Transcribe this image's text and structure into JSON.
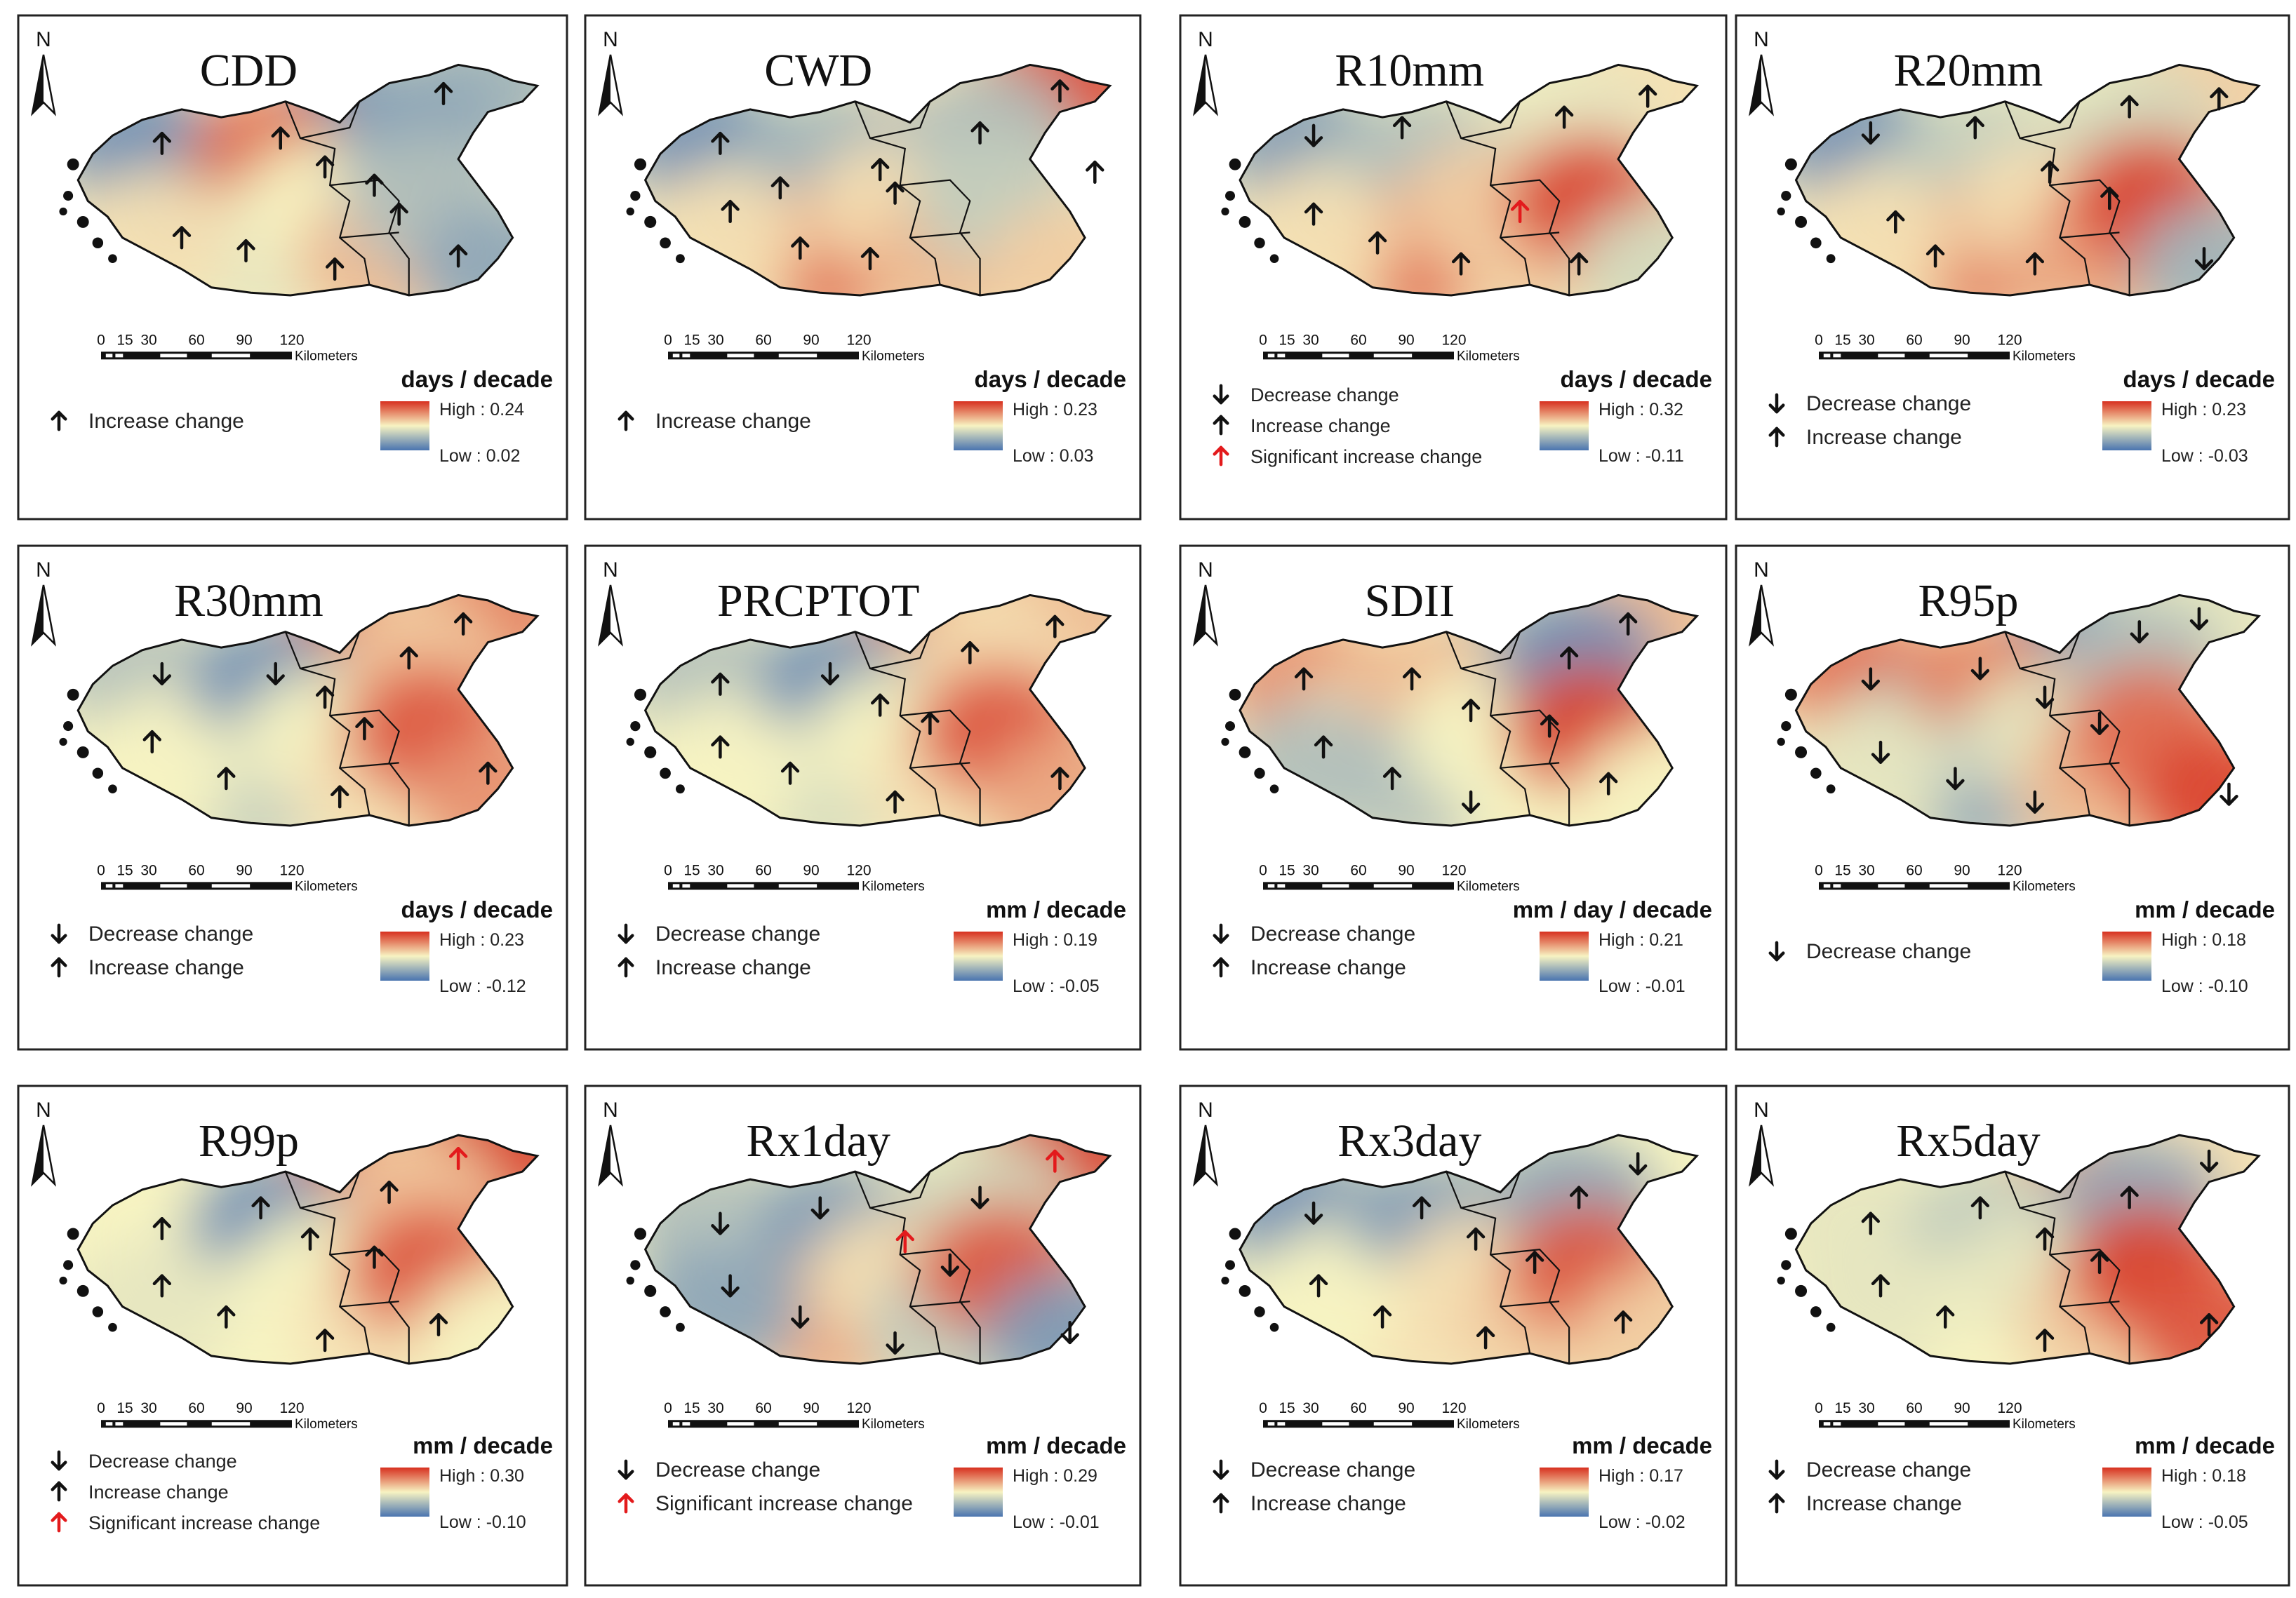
{
  "scale_bar": {
    "ticks": [
      "0",
      "15",
      "30",
      "60",
      "90",
      "120"
    ],
    "unit": "Kilometers"
  },
  "north_label": "N",
  "legend_labels": {
    "decrease": "Decrease change",
    "increase": "Increase change",
    "significant": "Significant increase change"
  },
  "colors": {
    "high": "#d7301f",
    "mid": "#f7f3c2",
    "low": "#4a74b0",
    "arrow": "#111111",
    "significant_arrow": "#e31a1c"
  },
  "panels": [
    {
      "title": "CDD",
      "unit": "days / decade",
      "high": "High : 0.24",
      "low": "Low : 0.02",
      "legend": [
        "increase"
      ],
      "field": [
        0.1,
        0.15,
        0.1,
        0.25,
        0.85,
        0.45,
        0.5,
        0.2,
        0.55,
        0.65,
        0.3,
        0.2
      ],
      "arrows": [
        [
          0.22,
          0.36,
          "up"
        ],
        [
          0.46,
          0.34,
          "up"
        ],
        [
          0.55,
          0.45,
          "up"
        ],
        [
          0.65,
          0.52,
          "up"
        ],
        [
          0.26,
          0.72,
          "up"
        ],
        [
          0.39,
          0.77,
          "up"
        ],
        [
          0.57,
          0.84,
          "up"
        ],
        [
          0.7,
          0.63,
          "up"
        ],
        [
          0.79,
          0.17,
          "up"
        ],
        [
          0.82,
          0.79,
          "up"
        ]
      ]
    },
    {
      "title": "CWD",
      "unit": "days / decade",
      "high": "High : 0.23",
      "low": "Low : 0.03",
      "legend": [
        "increase"
      ],
      "field": [
        0.1,
        0.3,
        0.55,
        0.95,
        0.25,
        0.85,
        0.55,
        0.3,
        0.55,
        0.65,
        0.35,
        0.6
      ],
      "arrows": [
        [
          0.2,
          0.36,
          "up"
        ],
        [
          0.32,
          0.53,
          "up"
        ],
        [
          0.52,
          0.46,
          "up"
        ],
        [
          0.55,
          0.55,
          "up"
        ],
        [
          0.22,
          0.62,
          "up"
        ],
        [
          0.36,
          0.76,
          "up"
        ],
        [
          0.5,
          0.8,
          "up"
        ],
        [
          0.72,
          0.32,
          "up"
        ],
        [
          0.88,
          0.16,
          "up"
        ],
        [
          0.95,
          0.47,
          "up"
        ]
      ]
    },
    {
      "title": "R10mm",
      "unit": "days / decade",
      "high": "High : 0.32",
      "low": "Low : -0.11",
      "legend": [
        "decrease",
        "increase",
        "significant"
      ],
      "field": [
        0.15,
        0.35,
        0.5,
        0.55,
        0.3,
        0.85,
        0.6,
        0.45,
        0.55,
        0.6,
        0.95,
        0.4
      ],
      "arrows": [
        [
          0.2,
          0.33,
          "down"
        ],
        [
          0.38,
          0.3,
          "up"
        ],
        [
          0.2,
          0.63,
          "up"
        ],
        [
          0.33,
          0.74,
          "up"
        ],
        [
          0.5,
          0.82,
          "up"
        ],
        [
          0.62,
          0.62,
          "sig"
        ],
        [
          0.71,
          0.26,
          "up"
        ],
        [
          0.88,
          0.18,
          "up"
        ],
        [
          0.74,
          0.82,
          "up"
        ]
      ]
    },
    {
      "title": "R20mm",
      "unit": "days / decade",
      "high": "High : 0.23",
      "low": "Low : -0.03",
      "legend": [
        "decrease",
        "increase"
      ],
      "field": [
        0.1,
        0.35,
        0.5,
        0.6,
        0.35,
        0.8,
        0.55,
        0.4,
        0.55,
        0.7,
        0.95,
        0.25
      ],
      "arrows": [
        [
          0.2,
          0.32,
          "down"
        ],
        [
          0.41,
          0.3,
          "up"
        ],
        [
          0.56,
          0.47,
          "up"
        ],
        [
          0.68,
          0.57,
          "up"
        ],
        [
          0.25,
          0.66,
          "up"
        ],
        [
          0.33,
          0.79,
          "up"
        ],
        [
          0.53,
          0.82,
          "up"
        ],
        [
          0.72,
          0.22,
          "up"
        ],
        [
          0.9,
          0.19,
          "up"
        ],
        [
          0.87,
          0.8,
          "down"
        ]
      ]
    },
    {
      "title": "R30mm",
      "unit": "days / decade",
      "high": "High : 0.23",
      "low": "Low : -0.12",
      "legend": [
        "decrease",
        "increase"
      ],
      "field": [
        0.3,
        0.45,
        0.9,
        0.8,
        0.1,
        0.35,
        0.5,
        0.6,
        0.5,
        0.55,
        0.9,
        0.75
      ],
      "arrows": [
        [
          0.22,
          0.36,
          "down"
        ],
        [
          0.45,
          0.36,
          "down"
        ],
        [
          0.55,
          0.45,
          "up"
        ],
        [
          0.63,
          0.57,
          "up"
        ],
        [
          0.2,
          0.62,
          "up"
        ],
        [
          0.35,
          0.76,
          "up"
        ],
        [
          0.58,
          0.83,
          "up"
        ],
        [
          0.72,
          0.3,
          "up"
        ],
        [
          0.83,
          0.17,
          "up"
        ],
        [
          0.88,
          0.74,
          "up"
        ]
      ]
    },
    {
      "title": "PRCPTOT",
      "unit": "mm / decade",
      "high": "High : 0.19",
      "low": "Low : -0.05",
      "legend": [
        "decrease",
        "increase"
      ],
      "field": [
        0.3,
        0.4,
        0.8,
        0.65,
        0.1,
        0.4,
        0.5,
        0.55,
        0.5,
        0.55,
        0.9,
        0.7
      ],
      "arrows": [
        [
          0.2,
          0.4,
          "up"
        ],
        [
          0.42,
          0.36,
          "down"
        ],
        [
          0.52,
          0.48,
          "up"
        ],
        [
          0.62,
          0.55,
          "up"
        ],
        [
          0.2,
          0.64,
          "up"
        ],
        [
          0.34,
          0.74,
          "up"
        ],
        [
          0.55,
          0.85,
          "up"
        ],
        [
          0.7,
          0.28,
          "up"
        ],
        [
          0.87,
          0.18,
          "up"
        ],
        [
          0.88,
          0.76,
          "up"
        ]
      ]
    },
    {
      "title": "SDII",
      "unit": "mm / day / decade",
      "high": "High : 0.21",
      "low": "Low : -0.01",
      "legend": [
        "decrease",
        "increase"
      ],
      "field": [
        0.75,
        0.55,
        0.35,
        0.65,
        0.65,
        0.3,
        0.5,
        0.1,
        0.3,
        0.5,
        0.95,
        0.5
      ],
      "arrows": [
        [
          0.18,
          0.38,
          "up"
        ],
        [
          0.4,
          0.38,
          "up"
        ],
        [
          0.52,
          0.5,
          "up"
        ],
        [
          0.68,
          0.56,
          "up"
        ],
        [
          0.22,
          0.64,
          "up"
        ],
        [
          0.36,
          0.76,
          "up"
        ],
        [
          0.52,
          0.85,
          "down"
        ],
        [
          0.72,
          0.3,
          "up"
        ],
        [
          0.84,
          0.17,
          "up"
        ],
        [
          0.8,
          0.78,
          "up"
        ]
      ]
    },
    {
      "title": "R95p",
      "unit": "mm / decade",
      "high": "High : 0.18",
      "low": "Low : -0.10",
      "legend": [
        "decrease"
      ],
      "field": [
        0.85,
        0.3,
        0.1,
        0.45,
        0.8,
        0.2,
        0.45,
        0.3,
        0.45,
        0.65,
        0.85,
        0.95
      ],
      "arrows": [
        [
          0.2,
          0.38,
          "down"
        ],
        [
          0.42,
          0.34,
          "down"
        ],
        [
          0.55,
          0.45,
          "down"
        ],
        [
          0.66,
          0.55,
          "down"
        ],
        [
          0.22,
          0.66,
          "down"
        ],
        [
          0.37,
          0.76,
          "down"
        ],
        [
          0.53,
          0.85,
          "down"
        ],
        [
          0.74,
          0.2,
          "down"
        ],
        [
          0.86,
          0.15,
          "down"
        ],
        [
          0.92,
          0.82,
          "down"
        ]
      ]
    },
    {
      "title": "R99p",
      "unit": "mm / decade",
      "high": "High : 0.30",
      "low": "Low : -0.10",
      "legend": [
        "decrease",
        "increase",
        "significant"
      ],
      "field": [
        0.5,
        0.5,
        0.9,
        1.0,
        0.1,
        0.5,
        0.5,
        0.6,
        0.45,
        0.55,
        0.9,
        0.5
      ],
      "arrows": [
        [
          0.22,
          0.42,
          "up"
        ],
        [
          0.42,
          0.34,
          "up"
        ],
        [
          0.52,
          0.46,
          "up"
        ],
        [
          0.65,
          0.53,
          "up"
        ],
        [
          0.22,
          0.64,
          "up"
        ],
        [
          0.35,
          0.76,
          "up"
        ],
        [
          0.55,
          0.85,
          "up"
        ],
        [
          0.68,
          0.28,
          "up"
        ],
        [
          0.82,
          0.15,
          "sig"
        ],
        [
          0.78,
          0.79,
          "up"
        ]
      ]
    },
    {
      "title": "Rx1day",
      "unit": "mm / decade",
      "high": "High : 0.29",
      "low": "Low : -0.01",
      "legend": [
        "decrease",
        "significant"
      ],
      "field": [
        0.3,
        0.35,
        0.5,
        1.0,
        0.15,
        0.7,
        0.55,
        0.4,
        0.2,
        0.35,
        0.9,
        0.15
      ],
      "arrows": [
        [
          0.2,
          0.4,
          "down"
        ],
        [
          0.4,
          0.34,
          "down"
        ],
        [
          0.57,
          0.47,
          "sig"
        ],
        [
          0.66,
          0.56,
          "down"
        ],
        [
          0.22,
          0.64,
          "down"
        ],
        [
          0.36,
          0.76,
          "down"
        ],
        [
          0.55,
          0.86,
          "down"
        ],
        [
          0.72,
          0.3,
          "down"
        ],
        [
          0.87,
          0.16,
          "sig"
        ],
        [
          0.9,
          0.82,
          "down"
        ]
      ]
    },
    {
      "title": "Rx3day",
      "unit": "mm / decade",
      "high": "High : 0.17",
      "low": "Low : -0.02",
      "legend": [
        "decrease",
        "increase"
      ],
      "field": [
        0.1,
        0.45,
        0.4,
        0.5,
        0.15,
        0.55,
        0.55,
        0.2,
        0.5,
        0.6,
        0.9,
        0.6
      ],
      "arrows": [
        [
          0.2,
          0.36,
          "down"
        ],
        [
          0.42,
          0.34,
          "up"
        ],
        [
          0.53,
          0.46,
          "up"
        ],
        [
          0.65,
          0.55,
          "up"
        ],
        [
          0.21,
          0.64,
          "up"
        ],
        [
          0.34,
          0.76,
          "up"
        ],
        [
          0.55,
          0.84,
          "up"
        ],
        [
          0.74,
          0.3,
          "up"
        ],
        [
          0.86,
          0.17,
          "down"
        ],
        [
          0.83,
          0.78,
          "up"
        ]
      ]
    },
    {
      "title": "Rx5day",
      "unit": "mm / decade",
      "high": "High : 0.18",
      "low": "Low : -0.05",
      "legend": [
        "decrease",
        "increase"
      ],
      "field": [
        0.45,
        0.45,
        0.7,
        0.55,
        0.35,
        0.5,
        0.45,
        0.2,
        0.45,
        0.6,
        0.95,
        0.9
      ],
      "arrows": [
        [
          0.2,
          0.4,
          "up"
        ],
        [
          0.42,
          0.34,
          "up"
        ],
        [
          0.55,
          0.46,
          "up"
        ],
        [
          0.66,
          0.55,
          "up"
        ],
        [
          0.22,
          0.64,
          "up"
        ],
        [
          0.35,
          0.76,
          "up"
        ],
        [
          0.55,
          0.85,
          "up"
        ],
        [
          0.72,
          0.3,
          "up"
        ],
        [
          0.88,
          0.16,
          "down"
        ],
        [
          0.88,
          0.79,
          "up"
        ]
      ]
    }
  ]
}
